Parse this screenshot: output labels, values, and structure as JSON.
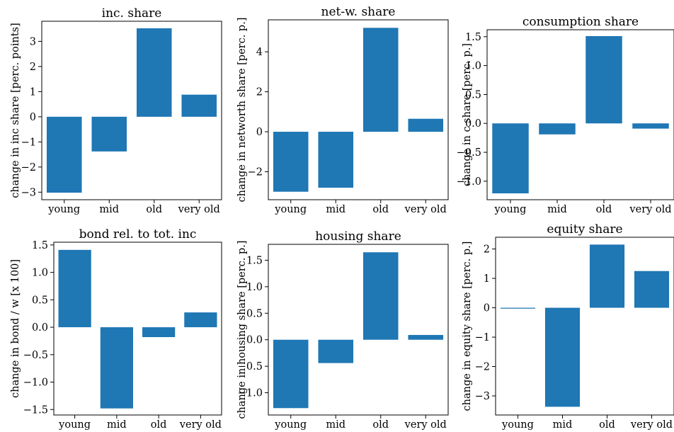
{
  "figure": {
    "bar_color": "#1f77b4"
  },
  "chart_data": [
    {
      "type": "bar",
      "title": "inc. share",
      "ylabel": "change in inc share [perc. points]",
      "categories": [
        "young",
        "mid",
        "old",
        "very old"
      ],
      "values": [
        -3.02,
        -1.38,
        3.52,
        0.88
      ],
      "ylim": [
        -3.3,
        3.8
      ],
      "yticks": [
        -3,
        -2,
        -1,
        0,
        1,
        2,
        3
      ],
      "ytick_labels": [
        "−3",
        "−2",
        "−1",
        "0",
        "1",
        "2",
        "3"
      ],
      "grid": false
    },
    {
      "type": "bar",
      "title": "net-w. share",
      "ylabel": "change in networth share [perc. p.]",
      "categories": [
        "young",
        "mid",
        "old",
        "very old"
      ],
      "values": [
        -3.0,
        -2.8,
        5.2,
        0.65
      ],
      "ylim": [
        -3.4,
        5.6
      ],
      "yticks": [
        -2,
        0,
        2,
        4
      ],
      "ytick_labels": [
        "−2",
        "0",
        "2",
        "4"
      ],
      "grid": false
    },
    {
      "type": "bar",
      "title": "consumption share",
      "ylabel": "change in c share [perc. p.]",
      "categories": [
        "young",
        "mid",
        "old",
        "very old"
      ],
      "values": [
        -1.21,
        -0.19,
        1.51,
        -0.09
      ],
      "ylim": [
        -1.32,
        1.62
      ],
      "yticks": [
        -1.0,
        -0.5,
        0.0,
        0.5,
        1.0,
        1.5
      ],
      "ytick_labels": [
        "−1.0",
        "−0.5",
        "0.0",
        "0.5",
        "1.0",
        "1.5"
      ],
      "grid": false
    },
    {
      "type": "bar",
      "title": "bond rel. to tot. inc",
      "ylabel": "change in bond / w [x 100]",
      "categories": [
        "young",
        "mid",
        "old",
        "very old"
      ],
      "values": [
        1.41,
        -1.48,
        -0.18,
        0.27
      ],
      "ylim": [
        -1.6,
        1.55
      ],
      "yticks": [
        -1.5,
        -1.0,
        -0.5,
        0.0,
        0.5,
        1.0,
        1.5
      ],
      "ytick_labels": [
        "−1.5",
        "−1.0",
        "−0.5",
        "0.0",
        "0.5",
        "1.0",
        "1.5"
      ],
      "grid": false
    },
    {
      "type": "bar",
      "title": "housing share",
      "ylabel": "change in housing share [perc. p.]",
      "categories": [
        "young",
        "mid",
        "old",
        "very old"
      ],
      "values": [
        -1.29,
        -0.44,
        1.65,
        0.09
      ],
      "ylim": [
        -1.42,
        1.8
      ],
      "yticks": [
        -1.0,
        -0.5,
        0.0,
        0.5,
        1.0,
        1.5
      ],
      "ytick_labels": [
        "−1.0",
        "−0.5",
        "0.0",
        "0.5",
        "1.0",
        "1.5"
      ],
      "grid": false
    },
    {
      "type": "bar",
      "title": "equity share",
      "ylabel": "change in equity share [perc. p.]",
      "categories": [
        "young",
        "mid",
        "old",
        "very old"
      ],
      "values": [
        -0.03,
        -3.37,
        2.15,
        1.25
      ],
      "ylim": [
        -3.65,
        2.4
      ],
      "yticks": [
        -3,
        -2,
        -1,
        0,
        1,
        2
      ],
      "ytick_labels": [
        "−3",
        "−2",
        "−1",
        "0",
        "1",
        "2"
      ],
      "grid": false
    }
  ]
}
